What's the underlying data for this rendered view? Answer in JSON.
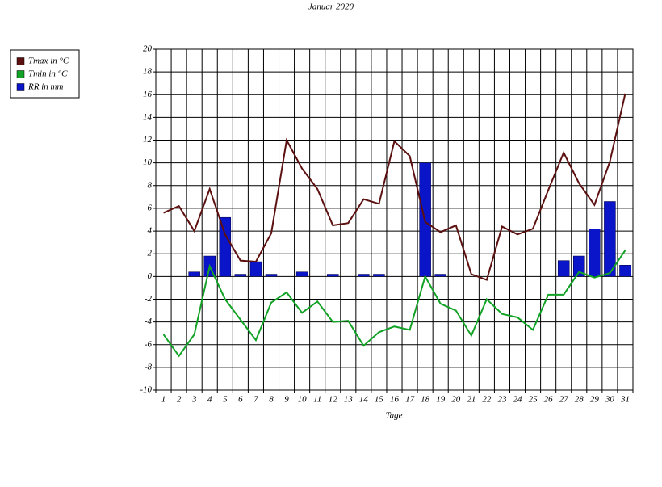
{
  "chart_data": {
    "type": "combo",
    "title": "Januar 2020",
    "x_label": "Tage",
    "categories": [
      "1",
      "2",
      "3",
      "4",
      "5",
      "6",
      "7",
      "8",
      "9",
      "10",
      "11",
      "12",
      "13",
      "14",
      "15",
      "16",
      "17",
      "18",
      "19",
      "20",
      "21",
      "22",
      "23",
      "24",
      "25",
      "26",
      "27",
      "28",
      "29",
      "30",
      "31"
    ],
    "series": [
      {
        "name": "Tmax in °C",
        "type": "line",
        "color": "#5c1010",
        "values": [
          5.6,
          6.2,
          4.0,
          7.7,
          3.7,
          1.4,
          1.3,
          3.8,
          12.0,
          9.5,
          7.7,
          4.5,
          4.7,
          6.8,
          6.4,
          11.9,
          10.6,
          4.8,
          3.9,
          4.5,
          0.2,
          -0.3,
          4.4,
          3.7,
          4.2,
          7.6,
          10.9,
          8.2,
          6.3,
          10.1,
          16.1
        ]
      },
      {
        "name": "Tmin in °C",
        "type": "line",
        "color": "#12a326",
        "values": [
          -5.1,
          -7.0,
          -5.1,
          0.9,
          -2.0,
          -3.8,
          -5.6,
          -2.3,
          -1.4,
          -3.2,
          -2.2,
          -4.0,
          -3.9,
          -6.1,
          -4.9,
          -4.4,
          -4.7,
          0.0,
          -2.4,
          -3.0,
          -5.2,
          -2.0,
          -3.3,
          -3.6,
          -4.7,
          -1.6,
          -1.6,
          0.4,
          -0.1,
          0.3,
          2.3
        ]
      },
      {
        "name": "RR in mm",
        "type": "bar",
        "color": "#0a14c8",
        "values": [
          0,
          0,
          0.4,
          1.8,
          5.2,
          0.2,
          1.3,
          0.2,
          0,
          0.4,
          0,
          0.2,
          0,
          0.2,
          0.2,
          0,
          0,
          10.0,
          0.2,
          0,
          0,
          0,
          0,
          0,
          0,
          0,
          1.4,
          1.8,
          4.2,
          6.6,
          1.0
        ]
      }
    ],
    "ylim": [
      -10,
      20
    ],
    "yticks": [
      -10,
      -8,
      -6,
      -4,
      -2,
      0,
      2,
      4,
      6,
      8,
      10,
      12,
      14,
      16,
      18,
      20
    ],
    "grid": true
  }
}
